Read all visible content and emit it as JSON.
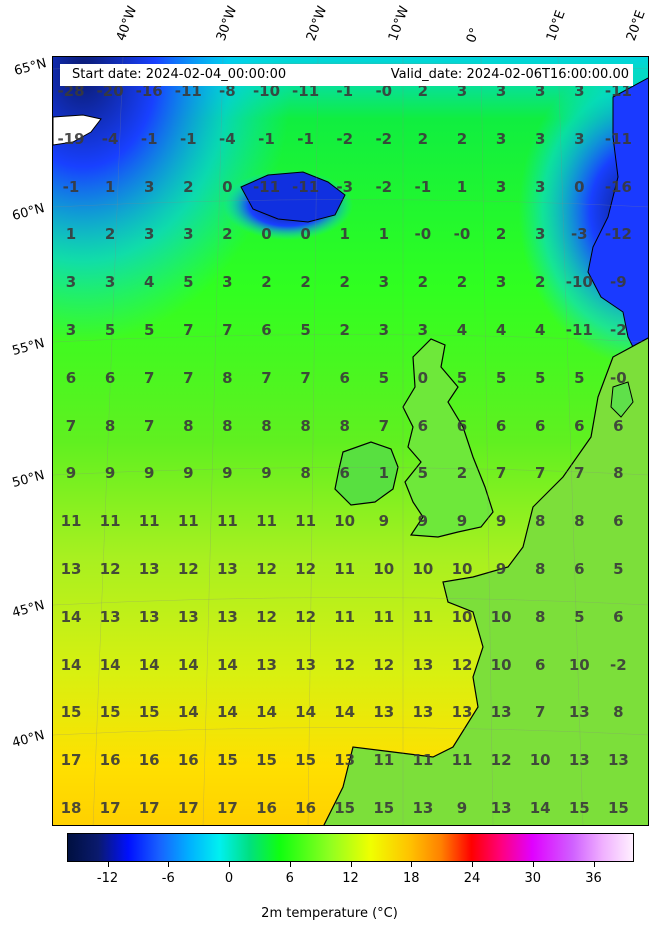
{
  "header": {
    "start_date": "Start date: 2024-02-04_00:00:00",
    "valid_date": "Valid_date: 2024-02-06T16:00:00.00"
  },
  "longitude_labels": [
    "40°W",
    "30°W",
    "20°W",
    "10°W",
    "0°",
    "10°E",
    "20°E"
  ],
  "latitude_labels": [
    "65°N",
    "60°N",
    "55°N",
    "50°N",
    "45°N",
    "40°N"
  ],
  "grid_values": [
    [
      "-28",
      "-20",
      "-16",
      "-11",
      "-8",
      "-10",
      "-11",
      "-1",
      "-0",
      "2",
      "3",
      "3",
      "3",
      "3",
      "-11"
    ],
    [
      "-19",
      "-4",
      "-1",
      "-1",
      "-4",
      "-1",
      "-1",
      "-2",
      "-2",
      "2",
      "2",
      "3",
      "3",
      "3",
      "-11"
    ],
    [
      "-1",
      "1",
      "3",
      "2",
      "0",
      "-11",
      "-11",
      "-3",
      "-2",
      "-1",
      "1",
      "3",
      "3",
      "0",
      "-16"
    ],
    [
      "1",
      "2",
      "3",
      "3",
      "2",
      "0",
      "0",
      "1",
      "1",
      "-0",
      "-0",
      "2",
      "3",
      "-3",
      "-12"
    ],
    [
      "3",
      "3",
      "4",
      "5",
      "3",
      "2",
      "2",
      "2",
      "3",
      "2",
      "2",
      "3",
      "2",
      "-10",
      "-9"
    ],
    [
      "3",
      "5",
      "5",
      "7",
      "7",
      "6",
      "5",
      "2",
      "3",
      "3",
      "4",
      "4",
      "4",
      "-11",
      "-2"
    ],
    [
      "6",
      "6",
      "7",
      "7",
      "8",
      "7",
      "7",
      "6",
      "5",
      "0",
      "5",
      "5",
      "5",
      "5",
      "-0"
    ],
    [
      "7",
      "8",
      "7",
      "8",
      "8",
      "8",
      "8",
      "8",
      "7",
      "6",
      "6",
      "6",
      "6",
      "6",
      "6"
    ],
    [
      "9",
      "9",
      "9",
      "9",
      "9",
      "9",
      "8",
      "6",
      "1",
      "5",
      "2",
      "7",
      "7",
      "7",
      "8"
    ],
    [
      "11",
      "11",
      "11",
      "11",
      "11",
      "11",
      "11",
      "10",
      "9",
      "9",
      "9",
      "9",
      "8",
      "8",
      "6"
    ],
    [
      "13",
      "12",
      "13",
      "12",
      "13",
      "12",
      "12",
      "11",
      "10",
      "10",
      "10",
      "9",
      "8",
      "6",
      "5"
    ],
    [
      "14",
      "13",
      "13",
      "13",
      "13",
      "12",
      "12",
      "11",
      "11",
      "11",
      "10",
      "10",
      "8",
      "5",
      "6"
    ],
    [
      "14",
      "14",
      "14",
      "14",
      "14",
      "13",
      "13",
      "12",
      "12",
      "13",
      "12",
      "10",
      "6",
      "10",
      "-2"
    ],
    [
      "15",
      "15",
      "15",
      "14",
      "14",
      "14",
      "14",
      "14",
      "13",
      "13",
      "13",
      "13",
      "7",
      "13",
      "8"
    ],
    [
      "17",
      "16",
      "16",
      "16",
      "15",
      "15",
      "15",
      "13",
      "11",
      "11",
      "11",
      "12",
      "10",
      "13",
      "13"
    ],
    [
      "18",
      "17",
      "17",
      "17",
      "17",
      "16",
      "16",
      "15",
      "15",
      "13",
      "9",
      "13",
      "14",
      "15",
      "15"
    ]
  ],
  "colorbar": {
    "title": "2m temperature ($^\\circ$C)",
    "title_display": "2m temperature (°C)",
    "min": -16,
    "max": 40,
    "ticks": [
      "-12",
      "-6",
      "0",
      "6",
      "12",
      "18",
      "24",
      "30",
      "36"
    ],
    "tick_values": [
      -12,
      -6,
      0,
      6,
      12,
      18,
      24,
      30,
      36
    ]
  },
  "colors": {
    "cold_deep": "#0a1a6e",
    "cold": "#1840ff",
    "cyan": "#00e0e6",
    "green": "#1aff1a",
    "lime": "#a8ff1a",
    "yellow": "#fff200",
    "orange": "#ffa000",
    "red": "#ff0000",
    "magenta": "#e000ff",
    "pink": "#ffd0ff"
  }
}
